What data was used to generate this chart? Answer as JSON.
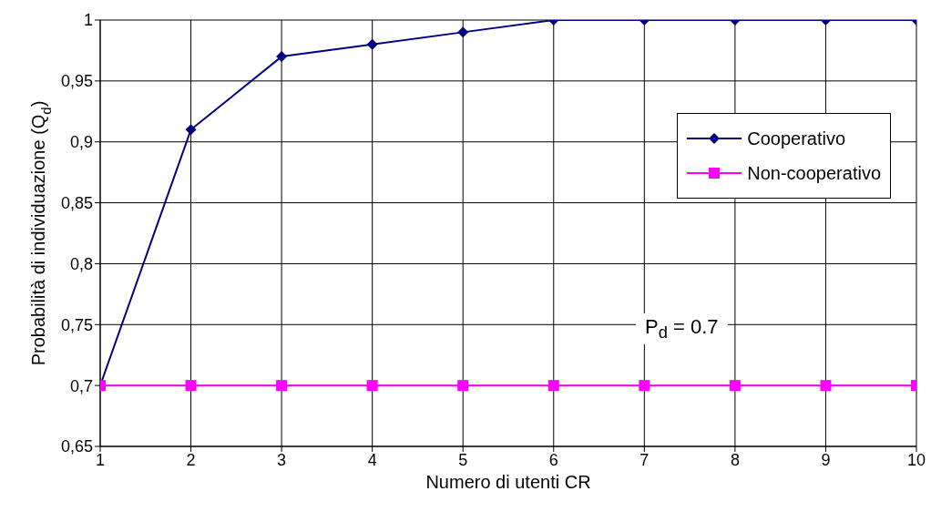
{
  "chart_data": {
    "type": "line",
    "xlabel": "Numero di utenti CR",
    "ylabel": "Probabilità di individuazione (Q$_{d}$)",
    "x": [
      1,
      2,
      3,
      4,
      5,
      6,
      7,
      8,
      9,
      10
    ],
    "series": [
      {
        "name": "Cooperativo",
        "color": "#000080",
        "marker": "diamond",
        "values": [
          0.7,
          0.91,
          0.97,
          0.98,
          0.99,
          1,
          1,
          1,
          1,
          1
        ]
      },
      {
        "name": "Non-cooperativo",
        "color": "#ff00ff",
        "marker": "square",
        "values": [
          0.7,
          0.7,
          0.7,
          0.7,
          0.7,
          0.7,
          0.7,
          0.7,
          0.7,
          0.7
        ]
      }
    ],
    "xlim": [
      1,
      10
    ],
    "xticks": [
      1,
      2,
      3,
      4,
      5,
      6,
      7,
      8,
      9,
      10
    ],
    "ylim": [
      0.65,
      1
    ],
    "yticks": [
      {
        "value": 0.65,
        "label": "0,65"
      },
      {
        "value": 0.7,
        "label": "0,7"
      },
      {
        "value": 0.75,
        "label": "0,75"
      },
      {
        "value": 0.8,
        "label": "0,8"
      },
      {
        "value": 0.85,
        "label": "0,85"
      },
      {
        "value": 0.9,
        "label": "0,9"
      },
      {
        "value": 0.95,
        "label": "0,95"
      },
      {
        "value": 1,
        "label": "1"
      }
    ],
    "grid": true,
    "legend": "top right",
    "line_style": "solid",
    "annotations": [
      "P$_{d}$ = 0.7"
    ]
  }
}
